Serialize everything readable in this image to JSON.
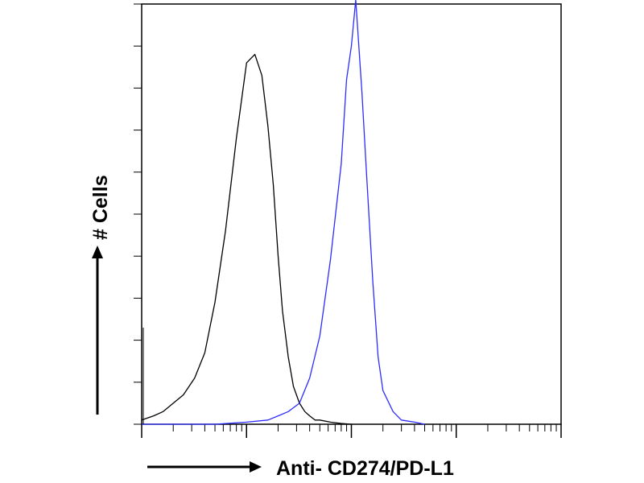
{
  "chart_data": {
    "type": "line",
    "title": "",
    "xlabel": "Anti- CD274/PD-L1",
    "ylabel": "# Cells",
    "x_scale": "log",
    "xlim": [
      1,
      10000
    ],
    "ylim": [
      0,
      100
    ],
    "grid": false,
    "legend": "none",
    "series": [
      {
        "color": "#000000",
        "x": [
          1,
          1.3,
          1.6,
          2,
          2.5,
          3.2,
          4,
          5,
          6.3,
          8,
          10,
          12,
          14,
          16,
          18,
          20,
          22,
          25,
          28,
          32,
          36,
          40,
          45,
          50,
          63,
          80,
          100
        ],
        "y": [
          1,
          2,
          3,
          5,
          7,
          11,
          17,
          29,
          46,
          68,
          86,
          88,
          83,
          71,
          57,
          40,
          27,
          16,
          9,
          5,
          3,
          2,
          1,
          1,
          0.5,
          0.2,
          0
        ]
      },
      {
        "color": "#2c2cff",
        "x": [
          1,
          5,
          10,
          16,
          20,
          25,
          32,
          40,
          50,
          63,
          80,
          90,
          100,
          110,
          126,
          140,
          160,
          180,
          200,
          250,
          300,
          400,
          500
        ],
        "y": [
          0,
          0,
          0.5,
          1,
          2,
          3,
          5,
          11,
          21,
          39,
          62,
          82,
          90,
          101,
          79,
          59,
          34,
          16,
          8,
          3,
          1,
          0.5,
          0
        ]
      }
    ],
    "y_ticks": 10,
    "x_decades": [
      1,
      10,
      100,
      1000,
      10000
    ]
  },
  "colors": {
    "frame": "#000000",
    "control": "#000000",
    "stained": "#2c2cff"
  }
}
